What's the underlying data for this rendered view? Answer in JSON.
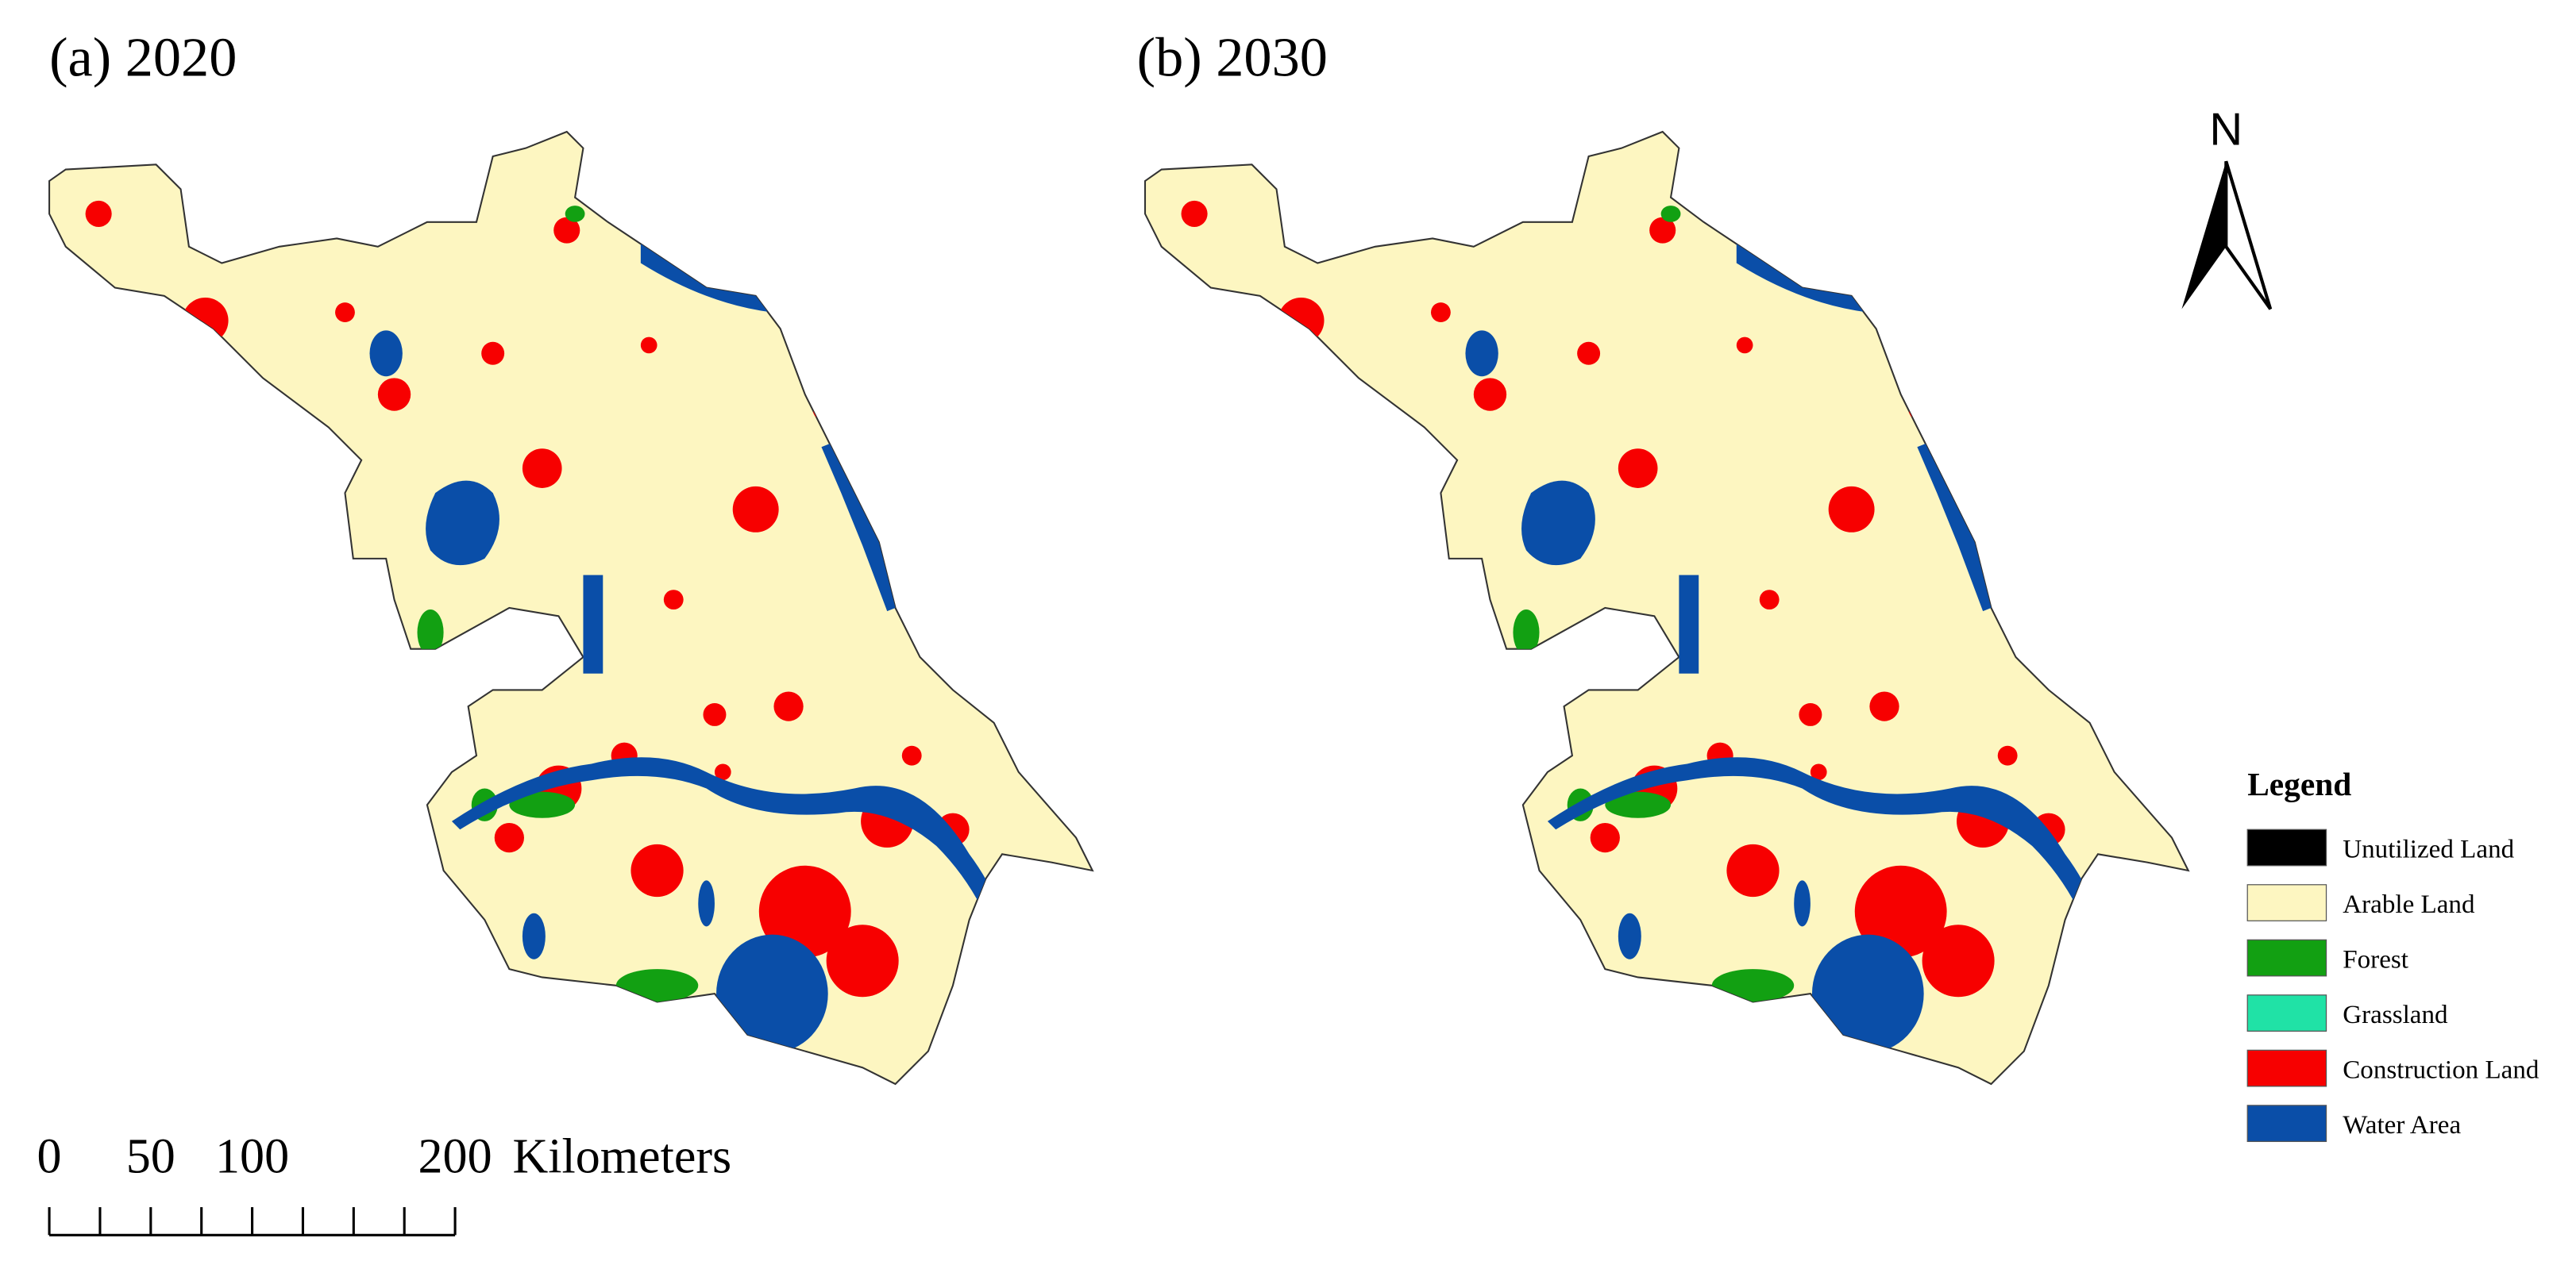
{
  "panels": [
    {
      "title": "(a) 2020"
    },
    {
      "title": "(b) 2030"
    }
  ],
  "north_arrow": {
    "label": "N"
  },
  "legend": {
    "title": "Legend",
    "items": [
      {
        "label": "Unutilized Land",
        "color": "#000000"
      },
      {
        "label": "Arable Land",
        "color": "#fdf6c1"
      },
      {
        "label": "Forest",
        "color": "#12a012"
      },
      {
        "label": "Grassland",
        "color": "#20e2a6"
      },
      {
        "label": "Construction Land",
        "color": "#f70000"
      },
      {
        "label": "Water Area",
        "color": "#0a4ea8"
      }
    ]
  },
  "scale_bar": {
    "ticks": [
      0,
      50,
      100,
      200
    ],
    "unit": "Kilometers"
  }
}
